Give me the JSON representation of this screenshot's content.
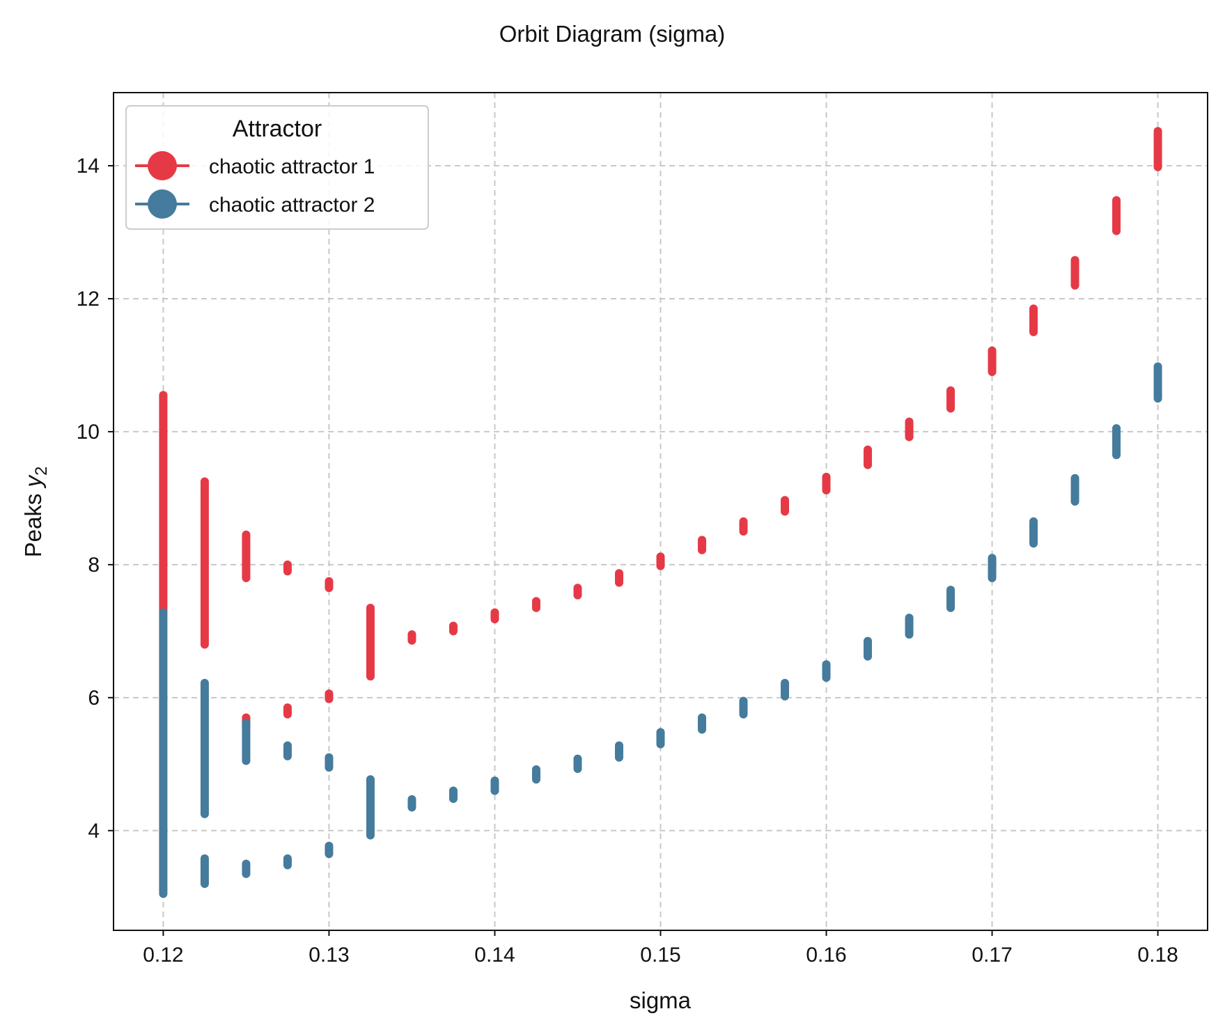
{
  "chart_data": {
    "type": "scatter",
    "title": "Orbit Diagram (sigma)",
    "xlabel": "sigma",
    "ylabel_main": "Peaks ",
    "ylabel_var": "y",
    "ylabel_sub": "2",
    "xlim": [
      0.117,
      0.183
    ],
    "ylim": [
      2.5,
      15.1
    ],
    "xticks": [
      0.12,
      0.13,
      0.14,
      0.15,
      0.16,
      0.17,
      0.18
    ],
    "xtick_labels": [
      "0.12",
      "0.13",
      "0.14",
      "0.15",
      "0.16",
      "0.17",
      "0.18"
    ],
    "yticks": [
      4,
      6,
      8,
      10,
      12,
      14
    ],
    "ytick_labels": [
      "4",
      "6",
      "8",
      "10",
      "12",
      "14"
    ],
    "grid": true,
    "legend": {
      "title": "Attractor",
      "position": "upper-left"
    },
    "series": [
      {
        "name": "chaotic attractor 1",
        "color": "#e63946",
        "segments": [
          {
            "x": 0.12,
            "y0": 7.3,
            "y1": 10.55
          },
          {
            "x": 0.1225,
            "y0": 6.8,
            "y1": 9.25
          },
          {
            "x": 0.125,
            "y0": 7.8,
            "y1": 8.45
          },
          {
            "x": 0.125,
            "y0": 5.55,
            "y1": 5.7
          },
          {
            "x": 0.1275,
            "y0": 7.9,
            "y1": 8.0
          },
          {
            "x": 0.1275,
            "y0": 5.75,
            "y1": 5.85
          },
          {
            "x": 0.13,
            "y0": 7.65,
            "y1": 7.75
          },
          {
            "x": 0.13,
            "y0": 5.98,
            "y1": 6.06
          },
          {
            "x": 0.1325,
            "y0": 6.32,
            "y1": 7.35
          },
          {
            "x": 0.135,
            "y0": 6.86,
            "y1": 6.95
          },
          {
            "x": 0.1375,
            "y0": 7.0,
            "y1": 7.08
          },
          {
            "x": 0.14,
            "y0": 7.18,
            "y1": 7.28
          },
          {
            "x": 0.1425,
            "y0": 7.35,
            "y1": 7.45
          },
          {
            "x": 0.145,
            "y0": 7.54,
            "y1": 7.65
          },
          {
            "x": 0.1475,
            "y0": 7.73,
            "y1": 7.87
          },
          {
            "x": 0.15,
            "y0": 7.98,
            "y1": 8.12
          },
          {
            "x": 0.1525,
            "y0": 8.22,
            "y1": 8.37
          },
          {
            "x": 0.155,
            "y0": 8.5,
            "y1": 8.65
          },
          {
            "x": 0.1575,
            "y0": 8.8,
            "y1": 8.97
          },
          {
            "x": 0.16,
            "y0": 9.12,
            "y1": 9.32
          },
          {
            "x": 0.1625,
            "y0": 9.5,
            "y1": 9.73
          },
          {
            "x": 0.165,
            "y0": 9.92,
            "y1": 10.15
          },
          {
            "x": 0.1675,
            "y0": 10.35,
            "y1": 10.62
          },
          {
            "x": 0.17,
            "y0": 10.9,
            "y1": 11.22
          },
          {
            "x": 0.1725,
            "y0": 11.5,
            "y1": 11.85
          },
          {
            "x": 0.175,
            "y0": 12.2,
            "y1": 12.58
          },
          {
            "x": 0.1775,
            "y0": 13.02,
            "y1": 13.48
          },
          {
            "x": 0.18,
            "y0": 13.98,
            "y1": 14.52
          }
        ]
      },
      {
        "name": "chaotic attractor 2",
        "color": "#457b9d",
        "segments": [
          {
            "x": 0.12,
            "y0": 3.05,
            "y1": 7.28
          },
          {
            "x": 0.1225,
            "y0": 4.25,
            "y1": 6.22
          },
          {
            "x": 0.1225,
            "y0": 3.2,
            "y1": 3.58
          },
          {
            "x": 0.125,
            "y0": 5.05,
            "y1": 5.62
          },
          {
            "x": 0.125,
            "y0": 3.35,
            "y1": 3.5
          },
          {
            "x": 0.1275,
            "y0": 5.12,
            "y1": 5.28
          },
          {
            "x": 0.1275,
            "y0": 3.48,
            "y1": 3.58
          },
          {
            "x": 0.13,
            "y0": 4.95,
            "y1": 5.1
          },
          {
            "x": 0.13,
            "y0": 3.65,
            "y1": 3.77
          },
          {
            "x": 0.1325,
            "y0": 3.93,
            "y1": 4.77
          },
          {
            "x": 0.135,
            "y0": 4.35,
            "y1": 4.47
          },
          {
            "x": 0.1375,
            "y0": 4.48,
            "y1": 4.6
          },
          {
            "x": 0.14,
            "y0": 4.6,
            "y1": 4.75
          },
          {
            "x": 0.1425,
            "y0": 4.77,
            "y1": 4.92
          },
          {
            "x": 0.145,
            "y0": 4.93,
            "y1": 5.08
          },
          {
            "x": 0.1475,
            "y0": 5.1,
            "y1": 5.28
          },
          {
            "x": 0.15,
            "y0": 5.3,
            "y1": 5.48
          },
          {
            "x": 0.1525,
            "y0": 5.52,
            "y1": 5.7
          },
          {
            "x": 0.155,
            "y0": 5.75,
            "y1": 5.95
          },
          {
            "x": 0.1575,
            "y0": 6.02,
            "y1": 6.22
          },
          {
            "x": 0.16,
            "y0": 6.3,
            "y1": 6.5
          },
          {
            "x": 0.1625,
            "y0": 6.62,
            "y1": 6.85
          },
          {
            "x": 0.165,
            "y0": 6.95,
            "y1": 7.2
          },
          {
            "x": 0.1675,
            "y0": 7.35,
            "y1": 7.62
          },
          {
            "x": 0.17,
            "y0": 7.8,
            "y1": 8.1
          },
          {
            "x": 0.1725,
            "y0": 8.32,
            "y1": 8.65
          },
          {
            "x": 0.175,
            "y0": 8.95,
            "y1": 9.3
          },
          {
            "x": 0.1775,
            "y0": 9.65,
            "y1": 10.05
          },
          {
            "x": 0.18,
            "y0": 10.5,
            "y1": 10.98
          }
        ]
      }
    ]
  }
}
